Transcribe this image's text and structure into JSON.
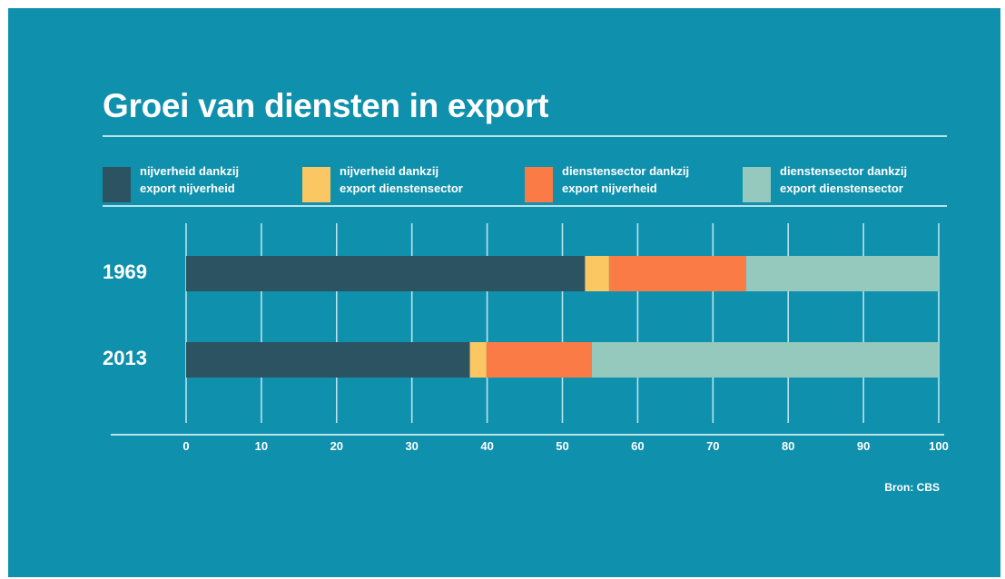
{
  "title": "Groei van diensten in export",
  "legend": [
    {
      "line1": "nijverheid dankzij",
      "line2": "export nijverheid",
      "color": "#2b5361"
    },
    {
      "line1": "nijverheid dankzij",
      "line2": "export dienstensector",
      "color": "#fbc762"
    },
    {
      "line1": "dienstensector dankzij",
      "line2": "export nijverheid",
      "color": "#fb7b46"
    },
    {
      "line1": "dienstensector dankzij",
      "line2": "export dienstensector",
      "color": "#95c9bd"
    }
  ],
  "chart_data": {
    "type": "bar",
    "orientation": "horizontal",
    "stacked": true,
    "categories": [
      "1969",
      "2013"
    ],
    "series": [
      {
        "name": "nijverheid dankzij export nijverheid",
        "color": "#2b5361",
        "values": [
          53,
          37.7
        ]
      },
      {
        "name": "nijverheid dankzij export dienstensector",
        "color": "#fbc762",
        "values": [
          3.2,
          2.2
        ]
      },
      {
        "name": "dienstensector dankzij export nijverheid",
        "color": "#fb7b46",
        "values": [
          18.2,
          14
        ]
      },
      {
        "name": "dienstensector dankzij export dienstensector",
        "color": "#95c9bd",
        "values": [
          25.6,
          46.1
        ]
      }
    ],
    "xlim": [
      0,
      100
    ],
    "xticks": [
      0,
      10,
      20,
      30,
      40,
      50,
      60,
      70,
      80,
      90,
      100
    ],
    "grid": true,
    "legend_position": "top",
    "title": "Groei van diensten in export"
  },
  "source": "Bron: CBS",
  "colors": {
    "background": "#0f90ad",
    "grid": "#b9e3ec",
    "text": "#ffffff"
  }
}
